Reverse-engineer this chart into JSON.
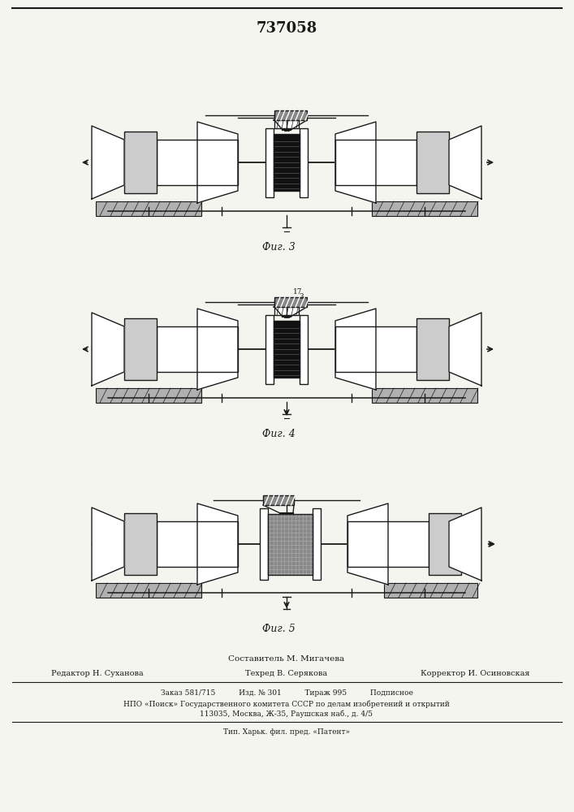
{
  "title_number": "737058",
  "fig3_label": "Фиг. 3",
  "fig4_label": "Фиг. 4",
  "fig5_label": "Фиг. 5",
  "footer_line1": "Составитель М. Мигачева",
  "footer_line2_col1": "Редактор Н. Суханова",
  "footer_line2_col2": "Техред В. Серякова",
  "footer_line2_col3": "Корректор И. Осиновская",
  "footer_line3": "Заказ 581/715          Изд. № 301          Тираж 995          Подписное",
  "footer_line4": "НПО «Поиск» Государственного комитета СССР по делам изобретений и открытий",
  "footer_line5": "113035, Москва, Ж-35, Раушская наб., д. 4/5",
  "footer_line6": "Тип. Харьк. фил. пред. «Патент»",
  "bg_color": "#f5f5f0",
  "line_color": "#1a1a1a"
}
